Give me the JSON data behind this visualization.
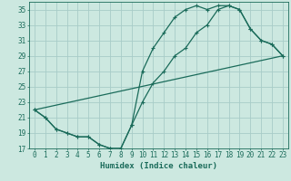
{
  "xlabel": "Humidex (Indice chaleur)",
  "background_color": "#cce8e0",
  "grid_color": "#a8ccc8",
  "line_color": "#1a6b5a",
  "xlim": [
    -0.5,
    23.5
  ],
  "ylim": [
    17,
    36
  ],
  "yticks": [
    17,
    19,
    21,
    23,
    25,
    27,
    29,
    31,
    33,
    35
  ],
  "xticks": [
    0,
    1,
    2,
    3,
    4,
    5,
    6,
    7,
    8,
    9,
    10,
    11,
    12,
    13,
    14,
    15,
    16,
    17,
    18,
    19,
    20,
    21,
    22,
    23
  ],
  "line1_x": [
    0,
    1,
    2,
    3,
    4,
    5,
    6,
    7,
    8,
    9,
    10,
    11,
    12,
    13,
    14,
    15,
    16,
    17,
    18,
    19,
    20,
    21,
    22,
    23
  ],
  "line1_y": [
    22,
    21,
    19.5,
    19,
    18.5,
    18.5,
    17.5,
    17,
    17,
    20,
    27,
    30,
    32,
    34,
    35,
    35.5,
    35,
    35.5,
    35.5,
    35,
    32.5,
    31,
    30.5,
    29
  ],
  "line2_x": [
    0,
    1,
    2,
    3,
    4,
    5,
    6,
    7,
    8,
    9,
    10,
    11,
    12,
    13,
    14,
    15,
    16,
    17,
    18,
    19,
    20,
    21,
    22,
    23
  ],
  "line2_y": [
    22,
    21,
    19.5,
    19,
    18.5,
    18.5,
    17.5,
    17,
    17,
    20,
    23,
    25.5,
    27,
    29,
    30,
    32,
    33,
    35,
    35.5,
    35,
    32.5,
    31,
    30.5,
    29
  ],
  "line3_x": [
    0,
    23
  ],
  "line3_y": [
    22,
    29
  ],
  "tick_fontsize": 5.5,
  "xlabel_fontsize": 6.5
}
